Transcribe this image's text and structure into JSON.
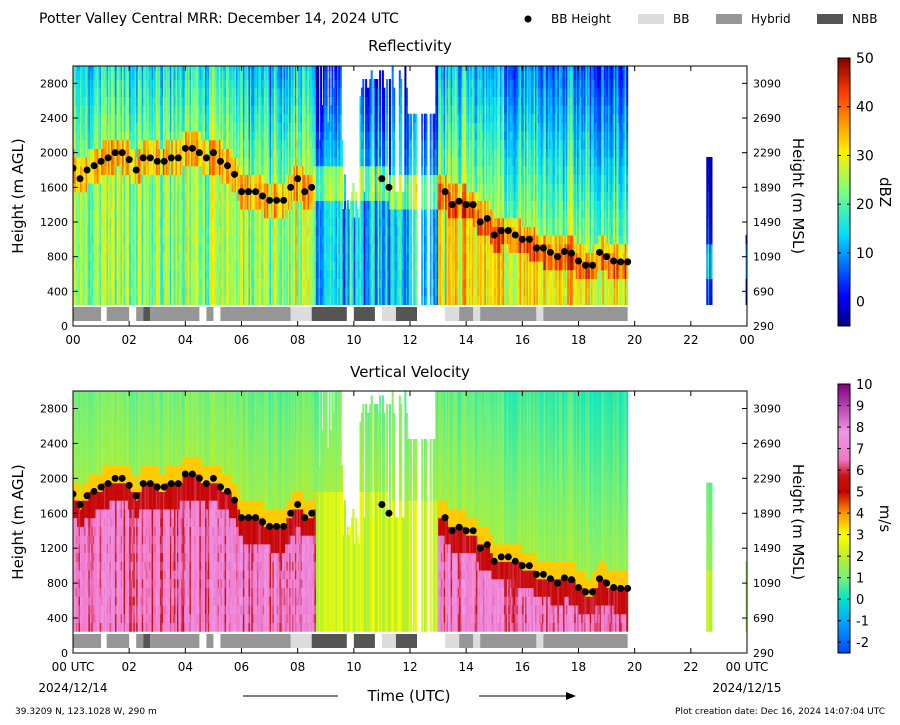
{
  "header": {
    "title": "Potter Valley Central MRR:  December 14, 2024 UTC",
    "legend": [
      {
        "label": "BB Height",
        "kind": "dot",
        "color": "#000000"
      },
      {
        "label": "BB",
        "kind": "swatch",
        "color": "#dcdcdc"
      },
      {
        "label": "Hybrid",
        "kind": "swatch",
        "color": "#969696"
      },
      {
        "label": "NBB",
        "kind": "swatch",
        "color": "#555555"
      }
    ]
  },
  "footer": {
    "location": "39.3209 N, 123.1028 W, 290 m",
    "creation": "Plot creation date: Dec 16, 2024 14:07:04 UTC",
    "xlabel": "Time (UTC)",
    "start_date": "2024/12/14",
    "end_date": "2024/12/15"
  },
  "chart_data": [
    {
      "type": "heatmap",
      "title": "Reflectivity",
      "ylabel": "Height (m AGL)",
      "ylabel_right": "Height (m MSL)",
      "colorbar_label": "dBZ",
      "colorbar_range": [
        -5,
        50
      ],
      "colorbar_ticks": [
        "0",
        "10",
        "20",
        "30",
        "40",
        "50"
      ],
      "colorbar_tick_values": [
        0,
        10,
        20,
        30,
        40,
        50
      ],
      "xlim": [
        0,
        24
      ],
      "ylim": [
        0,
        3000
      ],
      "x_ticks": [
        "00",
        "02",
        "04",
        "06",
        "08",
        "10",
        "12",
        "14",
        "16",
        "18",
        "20",
        "22",
        "00"
      ],
      "y_ticks": [
        0,
        400,
        800,
        1200,
        1600,
        2000,
        2400,
        2800
      ],
      "y_ticks_right": [
        290,
        690,
        1090,
        1490,
        1890,
        2290,
        2690,
        3090
      ]
    },
    {
      "type": "heatmap",
      "title": "Vertical Velocity",
      "ylabel": "Height (m AGL)",
      "ylabel_right": "Height (m MSL)",
      "colorbar_label": "m/s",
      "colorbar_range": [
        -2.5,
        10
      ],
      "colorbar_ticks": [
        "-2",
        "-1",
        "0",
        "1",
        "2",
        "3",
        "4",
        "5",
        "6",
        "7",
        "8",
        "9",
        "10"
      ],
      "colorbar_tick_values": [
        -2,
        -1,
        0,
        1,
        2,
        3,
        4,
        5,
        6,
        7,
        8,
        9,
        10
      ],
      "xlim": [
        0,
        24
      ],
      "ylim": [
        0,
        3000
      ],
      "x_ticks": [
        "00 UTC",
        "02",
        "04",
        "06",
        "08",
        "10",
        "12",
        "14",
        "16",
        "18",
        "20",
        "22",
        "00 UTC"
      ],
      "y_ticks": [
        0,
        400,
        800,
        1200,
        1600,
        2000,
        2400,
        2800
      ],
      "y_ticks_right": [
        290,
        690,
        1090,
        1490,
        1890,
        2290,
        2690,
        3090
      ]
    }
  ],
  "bright_band": {
    "times": [
      0.0,
      0.25,
      0.5,
      0.75,
      1.0,
      1.25,
      1.5,
      1.75,
      2.0,
      2.25,
      2.5,
      2.75,
      3.0,
      3.25,
      3.5,
      3.75,
      4.0,
      4.25,
      4.5,
      4.75,
      5.0,
      5.25,
      5.5,
      5.75,
      6.0,
      6.25,
      6.5,
      6.75,
      7.0,
      7.25,
      7.5,
      7.75,
      8.0,
      8.25,
      8.5,
      11.0,
      11.25,
      13.25,
      13.5,
      13.75,
      14.0,
      14.25,
      14.5,
      14.75,
      15.0,
      15.25,
      15.5,
      15.75,
      16.0,
      16.25,
      16.5,
      16.75,
      17.0,
      17.25,
      17.5,
      17.75,
      18.0,
      18.25,
      18.5,
      18.75,
      19.0,
      19.25,
      19.5,
      19.75
    ],
    "heights": [
      1820,
      1700,
      1800,
      1850,
      1900,
      1940,
      2000,
      2000,
      1920,
      1800,
      1940,
      1940,
      1900,
      1900,
      1940,
      1940,
      2050,
      2050,
      2000,
      1940,
      2000,
      1900,
      1850,
      1750,
      1550,
      1550,
      1550,
      1500,
      1450,
      1450,
      1450,
      1600,
      1700,
      1550,
      1600,
      1700,
      1600,
      1550,
      1400,
      1440,
      1400,
      1400,
      1200,
      1240,
      1050,
      1100,
      1100,
      1050,
      1000,
      1000,
      900,
      900,
      850,
      800,
      860,
      840,
      750,
      700,
      700,
      850,
      800,
      750,
      740,
      740
    ],
    "segments": [
      {
        "start": 0.0,
        "end": 1.0,
        "kind": "hybrid"
      },
      {
        "start": 1.2,
        "end": 2.0,
        "kind": "hybrid"
      },
      {
        "start": 2.25,
        "end": 2.5,
        "kind": "hybrid"
      },
      {
        "start": 2.5,
        "end": 2.75,
        "kind": "nbb"
      },
      {
        "start": 2.75,
        "end": 4.5,
        "kind": "hybrid"
      },
      {
        "start": 4.75,
        "end": 5.0,
        "kind": "hybrid"
      },
      {
        "start": 5.25,
        "end": 7.75,
        "kind": "hybrid"
      },
      {
        "start": 7.75,
        "end": 8.5,
        "kind": "bb"
      },
      {
        "start": 8.5,
        "end": 9.75,
        "kind": "nbb"
      },
      {
        "start": 10.0,
        "end": 10.75,
        "kind": "nbb"
      },
      {
        "start": 11.0,
        "end": 11.5,
        "kind": "bb"
      },
      {
        "start": 11.5,
        "end": 12.25,
        "kind": "nbb"
      },
      {
        "start": 13.25,
        "end": 13.75,
        "kind": "bb"
      },
      {
        "start": 13.75,
        "end": 14.25,
        "kind": "hybrid"
      },
      {
        "start": 14.25,
        "end": 14.5,
        "kind": "bb"
      },
      {
        "start": 14.5,
        "end": 16.5,
        "kind": "hybrid"
      },
      {
        "start": 16.5,
        "end": 16.75,
        "kind": "bb"
      },
      {
        "start": 16.75,
        "end": 19.75,
        "kind": "hybrid"
      }
    ]
  }
}
